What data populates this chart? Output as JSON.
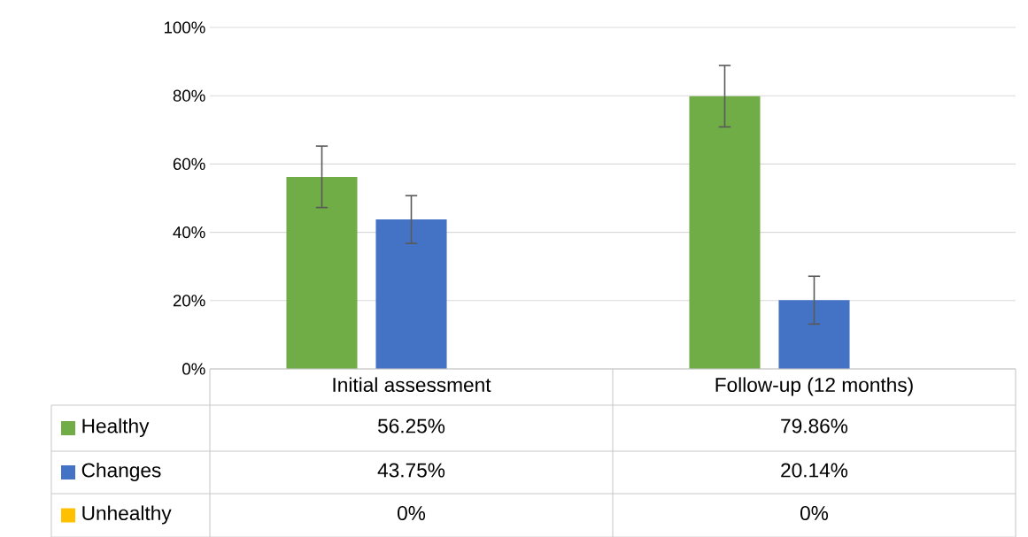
{
  "chart_data": {
    "type": "bar",
    "categories": [
      "Initial assessment",
      "Follow-up (12 months)"
    ],
    "series": [
      {
        "name": "Healthy",
        "color": "#70ad47",
        "values": [
          56.25,
          79.86
        ],
        "errors": [
          9,
          9
        ],
        "value_labels": [
          "56.25%",
          "79.86%"
        ]
      },
      {
        "name": "Changes",
        "color": "#4472c4",
        "values": [
          43.75,
          20.14
        ],
        "errors": [
          7,
          7
        ],
        "value_labels": [
          "43.75%",
          "20.14%"
        ]
      },
      {
        "name": "Unhealthy",
        "color": "#ffc000",
        "values": [
          0,
          0
        ],
        "value_labels": [
          "0%",
          "0%"
        ]
      }
    ],
    "ylim": [
      0,
      100
    ],
    "yticks": [
      {
        "value": 0,
        "label": "0%"
      },
      {
        "value": 20,
        "label": "20%"
      },
      {
        "value": 40,
        "label": "40%"
      },
      {
        "value": 60,
        "label": "60%"
      },
      {
        "value": 80,
        "label": "80%"
      },
      {
        "value": 100,
        "label": "100%"
      }
    ],
    "grid": "y",
    "legend": "bottom"
  }
}
